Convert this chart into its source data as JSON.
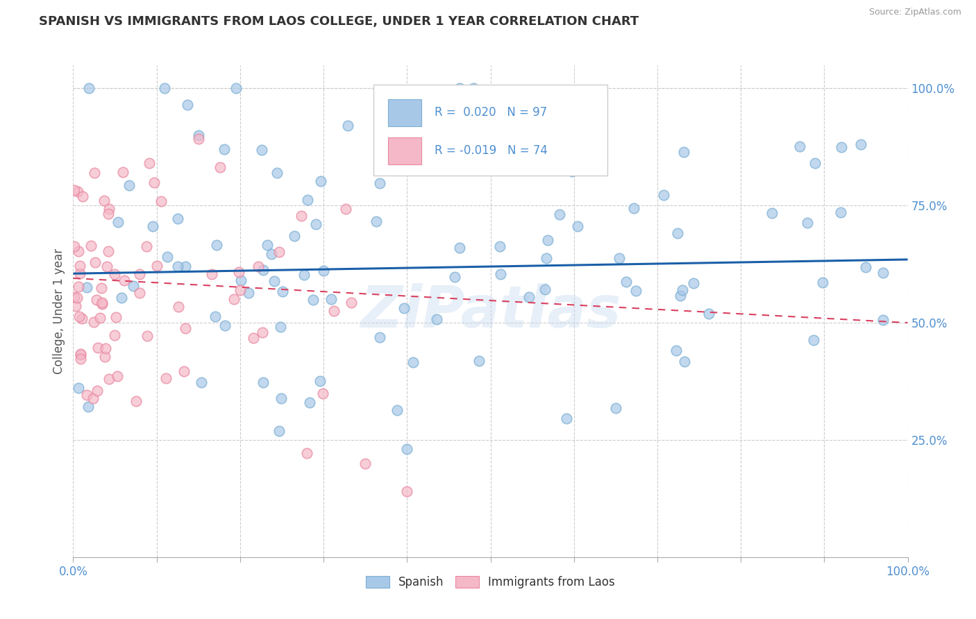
{
  "title": "SPANISH VS IMMIGRANTS FROM LAOS COLLEGE, UNDER 1 YEAR CORRELATION CHART",
  "source": "Source: ZipAtlas.com",
  "ylabel": "College, Under 1 year",
  "x_min": 0.0,
  "x_max": 1.0,
  "y_min": 0.0,
  "y_max": 1.05,
  "blue_R": 0.02,
  "blue_N": 97,
  "pink_R": -0.019,
  "pink_N": 74,
  "blue_color": "#a8c8e8",
  "pink_color": "#f4b8c8",
  "blue_scatter_edge": "#7BAFD4",
  "pink_scatter_edge": "#E888A0",
  "blue_line_color": "#1a5fa8",
  "pink_line_color": "#d94060",
  "background_color": "#FFFFFF",
  "legend_label_blue": "Spanish",
  "legend_label_pink": "Immigrants from Laos",
  "watermark": "ZiPatlas",
  "ytick_color": "#5090d0",
  "xtick_color": "#5090d0",
  "blue_trend_x0": 0.0,
  "blue_trend_y0": 0.605,
  "blue_trend_x1": 1.0,
  "blue_trend_y1": 0.635,
  "pink_trend_x0": 0.0,
  "pink_trend_y0": 0.595,
  "pink_trend_x1": 1.0,
  "pink_trend_y1": 0.5
}
